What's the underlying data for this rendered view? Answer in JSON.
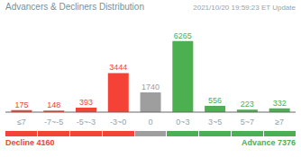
{
  "chart_data": {
    "type": "bar",
    "title": "Advancers & Decliners Distribution",
    "subtitle": "2021/10/20 19:59:23 ET Update",
    "categories": [
      "≤7",
      "-7~-5",
      "-5~-3",
      "-3~0",
      "0",
      "0~3",
      "3~5",
      "5~7",
      "≥7"
    ],
    "values": [
      175,
      148,
      393,
      3444,
      1740,
      6265,
      556,
      223,
      332
    ],
    "colors": [
      "#f44336",
      "#f44336",
      "#f44336",
      "#f44336",
      "#9e9e9e",
      "#4caf50",
      "#4caf50",
      "#4caf50",
      "#4caf50"
    ],
    "ylim": [
      0,
      7500
    ],
    "data_labels": true,
    "tick_labels": "x",
    "annotations": [
      {
        "text": "Decline 4160",
        "color": "#f44336"
      },
      {
        "text": "Advance 7376",
        "color": "#4caf50"
      }
    ]
  }
}
